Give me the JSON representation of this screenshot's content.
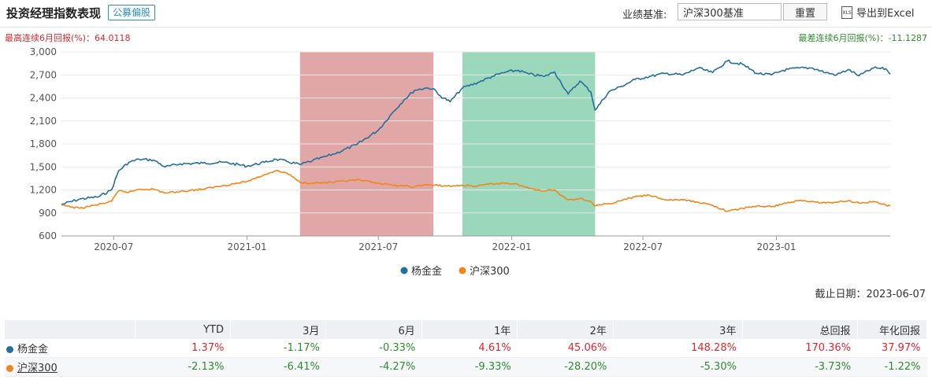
{
  "header": {
    "title": "投资经理指数表现",
    "badge": "公募偏股",
    "bench_label": "业绩基准:",
    "bench_value": "沪深300基准",
    "reset_label": "重置",
    "export_label": "导出到Excel",
    "export_icon_text": "XLS"
  },
  "stats": {
    "max_text": "最高连续6月回报(%)：64.0118",
    "min_text": "最差连续6月回报(%)：-11.1287"
  },
  "colors": {
    "manager": "#246f9b",
    "benchmark": "#f0861b",
    "red_band": "#d68383",
    "green_band": "#74c7a0",
    "positive": "#d9282f",
    "negative": "#2e8b2e"
  },
  "chart_data": {
    "type": "line",
    "yticks": [
      "3,000",
      "2,700",
      "2,400",
      "2,100",
      "1,800",
      "1,500",
      "1,200",
      "900",
      "600"
    ],
    "ylim": [
      600,
      3000
    ],
    "xlim": [
      "2020-04-20",
      "2023-06-07"
    ],
    "xticks": [
      {
        "date": "2020-07-01",
        "label": "2020-07"
      },
      {
        "date": "2021-01-01",
        "label": "2021-01"
      },
      {
        "date": "2021-07-01",
        "label": "2021-07"
      },
      {
        "date": "2022-01-01",
        "label": "2022-01"
      },
      {
        "date": "2022-07-01",
        "label": "2022-07"
      },
      {
        "date": "2023-01-01",
        "label": "2023-01"
      }
    ],
    "bands": [
      {
        "start": "2021-03-15",
        "end": "2021-09-15",
        "color": "red"
      },
      {
        "start": "2021-10-25",
        "end": "2022-04-26",
        "color": "green"
      }
    ],
    "series": [
      {
        "name": "杨金金",
        "color": "#246f9b",
        "points": [
          [
            "2020-04-20",
            1010
          ],
          [
            "2020-05-15",
            1080
          ],
          [
            "2020-06-10",
            1110
          ],
          [
            "2020-06-28",
            1200
          ],
          [
            "2020-07-08",
            1450
          ],
          [
            "2020-07-22",
            1560
          ],
          [
            "2020-08-05",
            1600
          ],
          [
            "2020-08-25",
            1590
          ],
          [
            "2020-09-10",
            1500
          ],
          [
            "2020-10-01",
            1540
          ],
          [
            "2020-11-01",
            1550
          ],
          [
            "2020-12-01",
            1560
          ],
          [
            "2021-01-01",
            1510
          ],
          [
            "2021-01-25",
            1560
          ],
          [
            "2021-02-10",
            1600
          ],
          [
            "2021-02-25",
            1570
          ],
          [
            "2021-03-15",
            1530
          ],
          [
            "2021-04-01",
            1580
          ],
          [
            "2021-05-01",
            1670
          ],
          [
            "2021-06-01",
            1790
          ],
          [
            "2021-07-01",
            1980
          ],
          [
            "2021-07-20",
            2200
          ],
          [
            "2021-08-05",
            2370
          ],
          [
            "2021-08-20",
            2500
          ],
          [
            "2021-09-05",
            2530
          ],
          [
            "2021-09-15",
            2520
          ],
          [
            "2021-09-22",
            2440
          ],
          [
            "2021-10-08",
            2350
          ],
          [
            "2021-10-25",
            2530
          ],
          [
            "2021-11-15",
            2600
          ],
          [
            "2021-12-05",
            2680
          ],
          [
            "2021-12-25",
            2740
          ],
          [
            "2022-01-10",
            2760
          ],
          [
            "2022-01-25",
            2710
          ],
          [
            "2022-02-15",
            2680
          ],
          [
            "2022-03-01",
            2740
          ],
          [
            "2022-03-10",
            2600
          ],
          [
            "2022-03-20",
            2450
          ],
          [
            "2022-04-05",
            2620
          ],
          [
            "2022-04-20",
            2480
          ],
          [
            "2022-04-26",
            2240
          ],
          [
            "2022-05-15",
            2480
          ],
          [
            "2022-06-01",
            2550
          ],
          [
            "2022-06-20",
            2640
          ],
          [
            "2022-07-10",
            2680
          ],
          [
            "2022-08-01",
            2720
          ],
          [
            "2022-08-25",
            2700
          ],
          [
            "2022-09-15",
            2790
          ],
          [
            "2022-10-05",
            2730
          ],
          [
            "2022-10-25",
            2880
          ],
          [
            "2022-11-15",
            2840
          ],
          [
            "2022-12-05",
            2720
          ],
          [
            "2022-12-25",
            2700
          ],
          [
            "2023-01-10",
            2760
          ],
          [
            "2023-02-01",
            2790
          ],
          [
            "2023-02-20",
            2790
          ],
          [
            "2023-03-10",
            2730
          ],
          [
            "2023-03-25",
            2700
          ],
          [
            "2023-04-10",
            2770
          ],
          [
            "2023-04-25",
            2690
          ],
          [
            "2023-05-15",
            2790
          ],
          [
            "2023-06-01",
            2780
          ],
          [
            "2023-06-07",
            2710
          ]
        ]
      },
      {
        "name": "沪深300",
        "color": "#f0861b",
        "points": [
          [
            "2020-04-20",
            1000
          ],
          [
            "2020-05-15",
            960
          ],
          [
            "2020-06-10",
            1010
          ],
          [
            "2020-06-28",
            1050
          ],
          [
            "2020-07-08",
            1190
          ],
          [
            "2020-07-22",
            1170
          ],
          [
            "2020-08-05",
            1210
          ],
          [
            "2020-08-25",
            1210
          ],
          [
            "2020-09-10",
            1160
          ],
          [
            "2020-10-01",
            1180
          ],
          [
            "2020-11-01",
            1210
          ],
          [
            "2020-12-01",
            1260
          ],
          [
            "2021-01-01",
            1310
          ],
          [
            "2021-01-25",
            1400
          ],
          [
            "2021-02-10",
            1450
          ],
          [
            "2021-02-25",
            1420
          ],
          [
            "2021-03-15",
            1300
          ],
          [
            "2021-04-01",
            1290
          ],
          [
            "2021-05-01",
            1300
          ],
          [
            "2021-06-01",
            1330
          ],
          [
            "2021-07-01",
            1290
          ],
          [
            "2021-07-20",
            1260
          ],
          [
            "2021-08-05",
            1250
          ],
          [
            "2021-08-20",
            1240
          ],
          [
            "2021-09-05",
            1270
          ],
          [
            "2021-09-15",
            1260
          ],
          [
            "2021-10-08",
            1250
          ],
          [
            "2021-10-25",
            1260
          ],
          [
            "2021-11-15",
            1250
          ],
          [
            "2021-12-05",
            1280
          ],
          [
            "2021-12-25",
            1290
          ],
          [
            "2022-01-10",
            1270
          ],
          [
            "2022-01-25",
            1220
          ],
          [
            "2022-02-15",
            1190
          ],
          [
            "2022-03-01",
            1200
          ],
          [
            "2022-03-10",
            1130
          ],
          [
            "2022-03-20",
            1070
          ],
          [
            "2022-04-05",
            1090
          ],
          [
            "2022-04-20",
            1050
          ],
          [
            "2022-04-26",
            990
          ],
          [
            "2022-05-15",
            1020
          ],
          [
            "2022-06-01",
            1060
          ],
          [
            "2022-06-20",
            1110
          ],
          [
            "2022-07-10",
            1130
          ],
          [
            "2022-08-01",
            1070
          ],
          [
            "2022-08-25",
            1070
          ],
          [
            "2022-09-15",
            1040
          ],
          [
            "2022-10-05",
            1000
          ],
          [
            "2022-10-25",
            920
          ],
          [
            "2022-11-15",
            960
          ],
          [
            "2022-12-05",
            990
          ],
          [
            "2022-12-25",
            980
          ],
          [
            "2023-01-10",
            1020
          ],
          [
            "2023-02-01",
            1060
          ],
          [
            "2023-02-20",
            1050
          ],
          [
            "2023-03-10",
            1030
          ],
          [
            "2023-03-25",
            1040
          ],
          [
            "2023-04-10",
            1060
          ],
          [
            "2023-04-25",
            1030
          ],
          [
            "2023-05-15",
            1050
          ],
          [
            "2023-06-01",
            1000
          ],
          [
            "2023-06-07",
            990
          ]
        ]
      }
    ]
  },
  "footer": {
    "deadline": "截止日期：2023-06-07"
  },
  "table": {
    "headers": [
      "",
      "YTD",
      "3月",
      "6月",
      "1年",
      "2年",
      "3年",
      "总回报",
      "年化回报"
    ],
    "rows": [
      {
        "name": "杨金金",
        "color": "#246f9b",
        "link": false,
        "values": [
          [
            "1.37%",
            "pos"
          ],
          [
            "-1.17%",
            "neg"
          ],
          [
            "-0.33%",
            "neg"
          ],
          [
            "4.61%",
            "pos"
          ],
          [
            "45.06%",
            "pos"
          ],
          [
            "148.28%",
            "pos"
          ],
          [
            "170.36%",
            "pos"
          ],
          [
            "37.97%",
            "pos"
          ]
        ]
      },
      {
        "name": "沪深300",
        "color": "#f0861b",
        "link": true,
        "values": [
          [
            "-2.13%",
            "neg"
          ],
          [
            "-6.41%",
            "neg"
          ],
          [
            "-4.27%",
            "neg"
          ],
          [
            "-9.33%",
            "neg"
          ],
          [
            "-28.20%",
            "neg"
          ],
          [
            "-5.30%",
            "neg"
          ],
          [
            "-3.73%",
            "neg"
          ],
          [
            "-1.22%",
            "neg"
          ]
        ]
      }
    ]
  }
}
